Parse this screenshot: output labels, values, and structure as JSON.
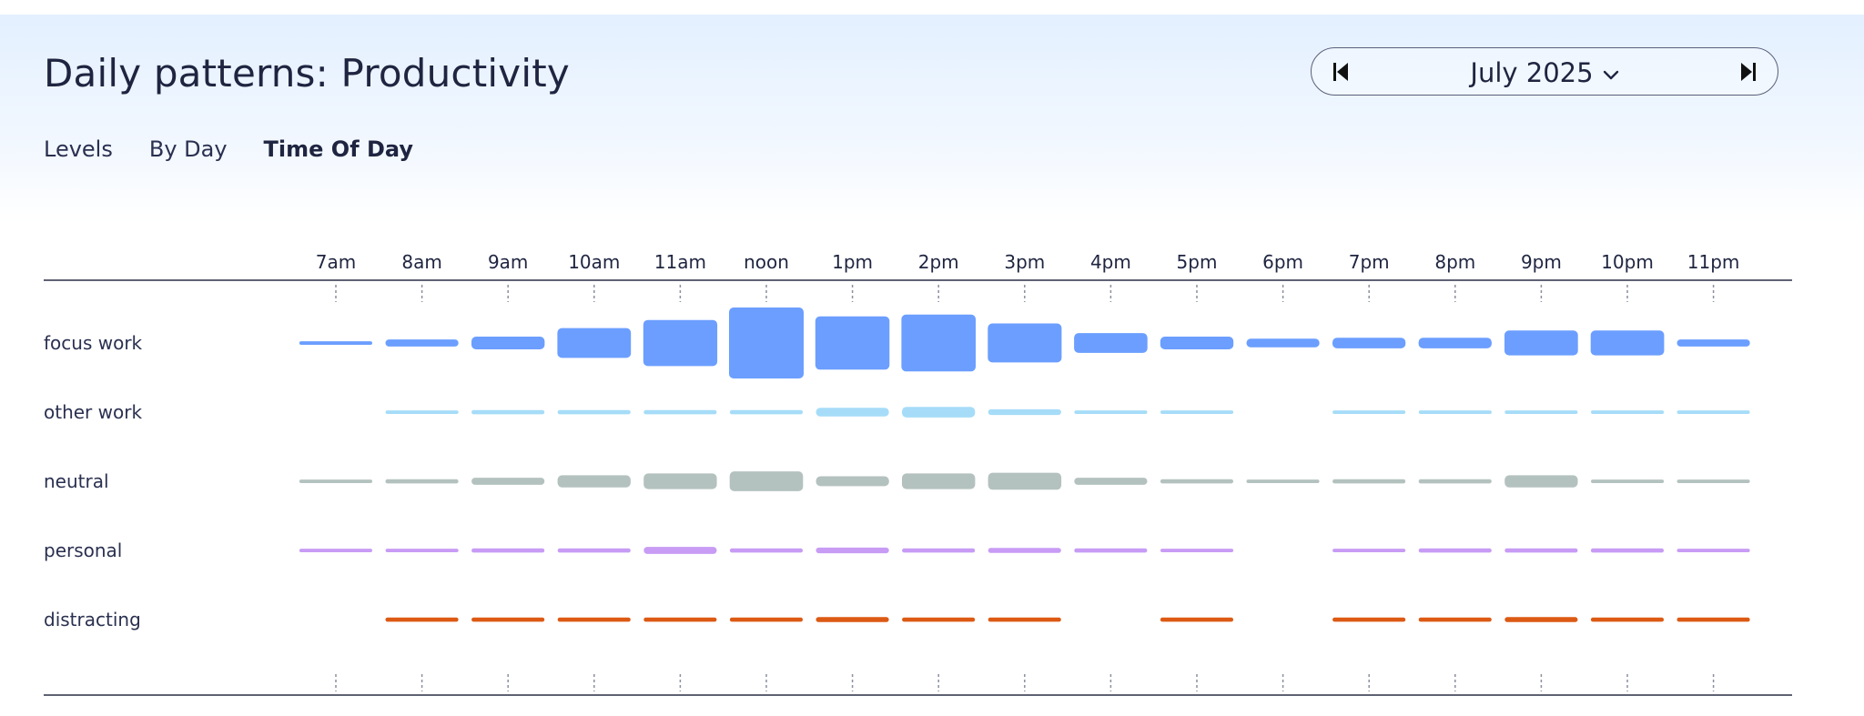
{
  "header": {
    "title": "Daily patterns: Productivity",
    "month": "July 2025"
  },
  "icons": {
    "prev": "caret-left-icon",
    "next": "caret-right-icon",
    "dropdown": "chevron-down-icon"
  },
  "tabs": [
    {
      "label": "Levels",
      "active": false
    },
    {
      "label": "By Day",
      "active": false
    },
    {
      "label": "Time Of Day",
      "active": true
    }
  ],
  "chart_data": {
    "type": "heatmap",
    "title": "",
    "xlabel": "",
    "ylabel": "",
    "grid": false,
    "legend": "none",
    "x": [
      "7am",
      "8am",
      "9am",
      "10am",
      "11am",
      "noon",
      "1pm",
      "2pm",
      "3pm",
      "4pm",
      "5pm",
      "6pm",
      "7pm",
      "8pm",
      "9pm",
      "10pm",
      "11pm"
    ],
    "value_unit": "relative time (fraction of largest cell)",
    "series": [
      {
        "name": "focus work",
        "color": "#6b9eff",
        "values": [
          0.05,
          0.1,
          0.18,
          0.42,
          0.65,
          1.0,
          0.75,
          0.8,
          0.55,
          0.28,
          0.18,
          0.12,
          0.15,
          0.15,
          0.35,
          0.35,
          0.1
        ]
      },
      {
        "name": "other work",
        "color": "#a6dcf8",
        "values": [
          0,
          0.05,
          0.06,
          0.06,
          0.06,
          0.06,
          0.12,
          0.15,
          0.08,
          0.05,
          0.05,
          0,
          0.05,
          0.05,
          0.05,
          0.05,
          0.05
        ]
      },
      {
        "name": "neutral",
        "color": "#b4c2bf",
        "values": [
          0.05,
          0.06,
          0.1,
          0.17,
          0.22,
          0.28,
          0.14,
          0.22,
          0.24,
          0.1,
          0.06,
          0.05,
          0.06,
          0.06,
          0.17,
          0.05,
          0.05
        ]
      },
      {
        "name": "personal",
        "color": "#c89cf5",
        "values": [
          0.05,
          0.05,
          0.06,
          0.06,
          0.1,
          0.06,
          0.08,
          0.06,
          0.07,
          0.06,
          0.05,
          0,
          0.05,
          0.06,
          0.06,
          0.06,
          0.05
        ]
      },
      {
        "name": "distracting",
        "color": "#dc5a14",
        "values": [
          0,
          0.06,
          0.06,
          0.06,
          0.06,
          0.06,
          0.07,
          0.06,
          0.06,
          0,
          0.06,
          0,
          0.06,
          0.06,
          0.07,
          0.06,
          0.06
        ]
      }
    ]
  }
}
